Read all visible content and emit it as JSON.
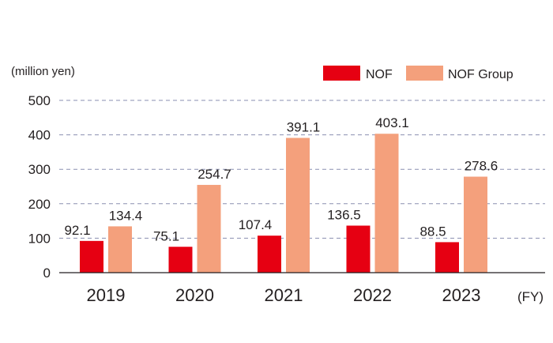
{
  "chart_data": {
    "type": "bar",
    "categories": [
      "2019",
      "2020",
      "2021",
      "2022",
      "2023"
    ],
    "series": [
      {
        "name": "NOF",
        "color": "#e60012",
        "values": [
          92.1,
          75.1,
          107.4,
          136.5,
          88.5
        ]
      },
      {
        "name": "NOF Group",
        "color": "#f4a07c",
        "values": [
          134.4,
          254.7,
          391.1,
          403.1,
          278.6
        ]
      }
    ],
    "data_labels": [
      [
        "92.1",
        "75.1",
        "107.4",
        "136.5",
        "88.5"
      ],
      [
        "134.4",
        "254.7",
        "391.1",
        "403.1",
        "278.6"
      ]
    ],
    "yticks": [
      0,
      100,
      200,
      300,
      400,
      500
    ],
    "ylim": [
      0,
      500
    ],
    "ylabel": "(million yen)",
    "xlabel": "(FY)",
    "grid": true,
    "legend_position": "top-right"
  }
}
